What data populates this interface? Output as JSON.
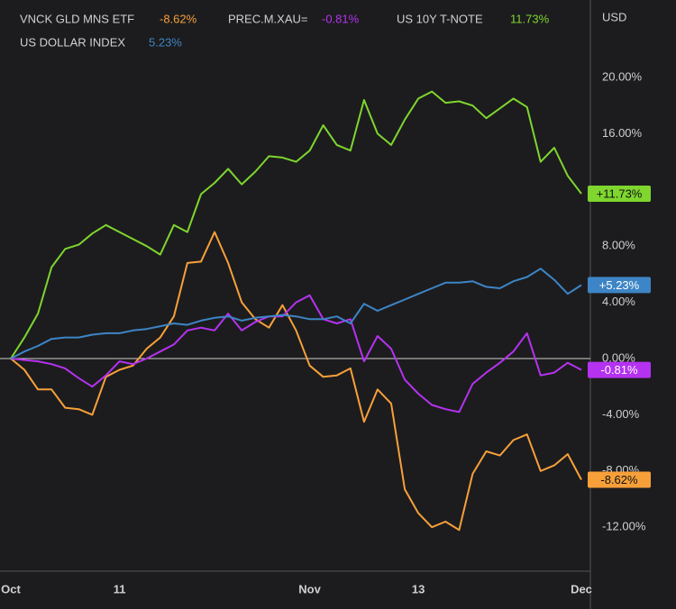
{
  "chart_data": {
    "type": "line",
    "y_axis_label": "USD",
    "categories": [
      "Oct",
      null,
      null,
      null,
      null,
      null,
      null,
      null,
      "11",
      null,
      null,
      null,
      null,
      null,
      null,
      null,
      null,
      null,
      null,
      null,
      null,
      null,
      "Nov",
      null,
      null,
      null,
      null,
      null,
      null,
      null,
      "13",
      null,
      null,
      null,
      null,
      null,
      null,
      null,
      null,
      null,
      null,
      null,
      "Dec"
    ],
    "series": [
      {
        "name": "VNCK GLD MNS ETF",
        "color": "#f7a03a",
        "legend_value": "-8.62%",
        "end_label": "-8.62%",
        "values": [
          0,
          -0.8,
          -2.2,
          -2.2,
          -3.5,
          -3.6,
          -4.0,
          -1.3,
          -0.8,
          -0.5,
          0.7,
          1.5,
          3.0,
          6.8,
          6.9,
          9.0,
          6.8,
          4.0,
          2.8,
          2.2,
          3.8,
          2.0,
          -0.5,
          -1.3,
          -1.2,
          -0.7,
          -4.5,
          -2.2,
          -3.2,
          -9.3,
          -11.0,
          -12.0,
          -11.6,
          -12.2,
          -8.2,
          -6.6,
          -6.9,
          -5.8,
          -5.4,
          -8.0,
          -7.6,
          -6.8,
          -8.62
        ]
      },
      {
        "name": "PREC.M.XAU=",
        "color": "#b532f0",
        "legend_value": "-0.81%",
        "end_label": "-0.81%",
        "values": [
          0,
          -0.1,
          -0.2,
          -0.4,
          -0.7,
          -1.4,
          -2.0,
          -1.2,
          -0.2,
          -0.4,
          0,
          0.5,
          1.0,
          2.0,
          2.2,
          2.0,
          3.2,
          2.0,
          2.6,
          3.0,
          3.0,
          4.0,
          4.5,
          2.8,
          2.5,
          2.8,
          -0.2,
          1.6,
          0.7,
          -1.5,
          -2.5,
          -3.3,
          -3.6,
          -3.8,
          -1.8,
          -1.0,
          -0.3,
          0.5,
          1.8,
          -1.2,
          -1.0,
          -0.3,
          -0.81
        ]
      },
      {
        "name": "US 10Y T-NOTE",
        "color": "#7ed62e",
        "legend_value": "11.73%",
        "end_label": "+11.73%",
        "values": [
          0,
          1.5,
          3.2,
          6.5,
          7.8,
          8.1,
          8.9,
          9.5,
          9.0,
          8.5,
          8.0,
          7.4,
          9.5,
          9.0,
          11.7,
          12.5,
          13.5,
          12.4,
          13.3,
          14.4,
          14.3,
          14.0,
          14.8,
          16.6,
          15.2,
          14.8,
          18.4,
          16.0,
          15.2,
          17.0,
          18.5,
          19.0,
          18.2,
          18.3,
          18.0,
          17.1,
          17.8,
          18.5,
          17.9,
          14.0,
          15.0,
          13.0,
          11.73
        ]
      },
      {
        "name": "US DOLLAR INDEX",
        "color": "#3d85c6",
        "legend_value": "5.23%",
        "end_label": "+5.23%",
        "values": [
          0,
          0.5,
          0.9,
          1.4,
          1.5,
          1.5,
          1.7,
          1.8,
          1.8,
          2.0,
          2.1,
          2.3,
          2.5,
          2.4,
          2.7,
          2.9,
          3.0,
          2.7,
          2.9,
          3.0,
          3.1,
          3.0,
          2.8,
          2.8,
          3.0,
          2.5,
          3.9,
          3.4,
          3.8,
          4.2,
          4.6,
          5.0,
          5.4,
          5.4,
          5.5,
          5.1,
          5.0,
          5.5,
          5.8,
          6.4,
          5.6,
          4.6,
          5.23
        ]
      }
    ],
    "ylim": [
      -15,
      25
    ],
    "yticks": [
      {
        "value": -12,
        "label": "-12.00%"
      },
      {
        "value": -8,
        "label": "-8.00%"
      },
      {
        "value": -4,
        "label": "-4.00%"
      },
      {
        "value": 0,
        "label": "0.00%"
      },
      {
        "value": 4,
        "label": "4.00%"
      },
      {
        "value": 8,
        "label": "8.00%"
      },
      {
        "value": 16,
        "label": "16.00%"
      },
      {
        "value": 20,
        "label": "20.00%"
      }
    ],
    "zero_line": true
  }
}
